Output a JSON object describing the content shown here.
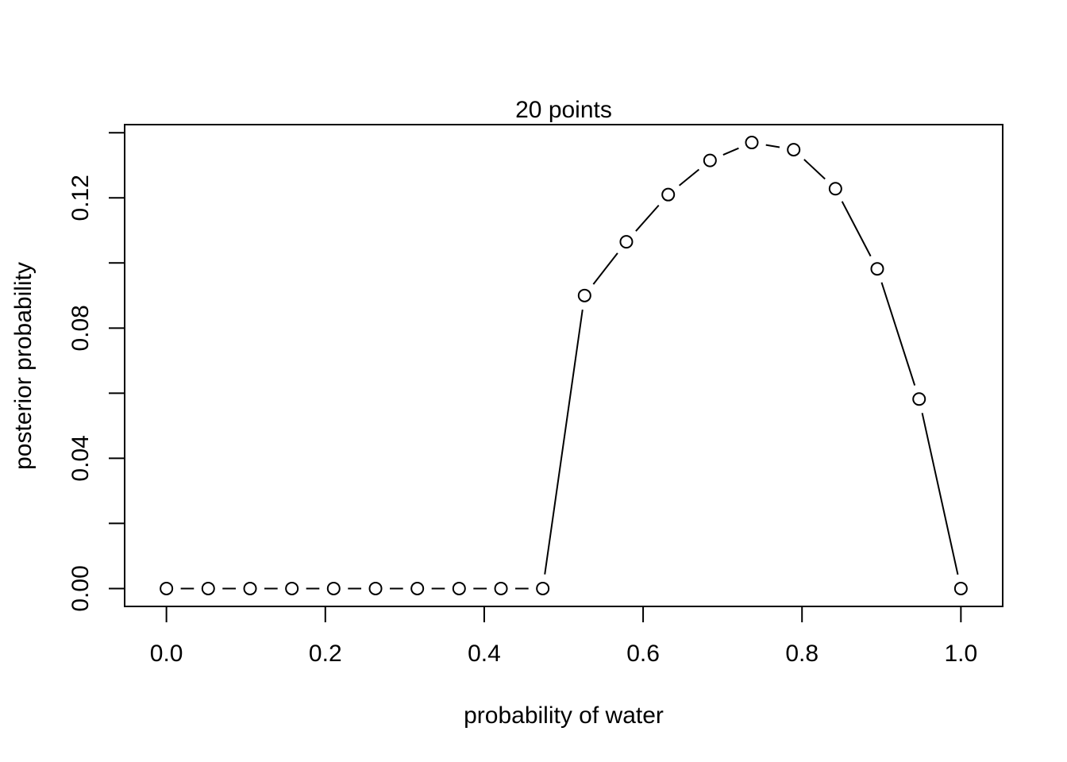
{
  "chart_data": {
    "type": "line",
    "title": "20 points",
    "xlabel": "probability of water",
    "ylabel": "posterior probability",
    "xlim": [
      -0.0526,
      1.0526
    ],
    "ylim": [
      -0.0055,
      0.1425
    ],
    "xticks": [
      0.0,
      0.2,
      0.4,
      0.6,
      0.8,
      1.0
    ],
    "xtick_labels": [
      "0.0",
      "0.2",
      "0.4",
      "0.6",
      "0.8",
      "1.0"
    ],
    "yticks": [
      0.0,
      0.02,
      0.04,
      0.06,
      0.08,
      0.1,
      0.12,
      0.14
    ],
    "ytick_labels": [
      "0.00",
      "",
      "0.04",
      "",
      "0.08",
      "",
      "0.12",
      ""
    ],
    "grid": false,
    "marker": "open-circle",
    "series": [
      {
        "x": [
          0.0,
          0.0526,
          0.1053,
          0.1579,
          0.2105,
          0.2632,
          0.3158,
          0.3684,
          0.4211,
          0.4737,
          0.5263,
          0.5789,
          0.6316,
          0.6842,
          0.7368,
          0.7895,
          0.8421,
          0.8947,
          0.9474,
          1.0
        ],
        "y": [
          0.0,
          0.0,
          0.0,
          0.0,
          0.0,
          0.0,
          0.0,
          0.0,
          0.0,
          0.0,
          0.09,
          0.1065,
          0.121,
          0.1315,
          0.137,
          0.1348,
          0.1228,
          0.0982,
          0.0582,
          0.0
        ]
      }
    ]
  }
}
